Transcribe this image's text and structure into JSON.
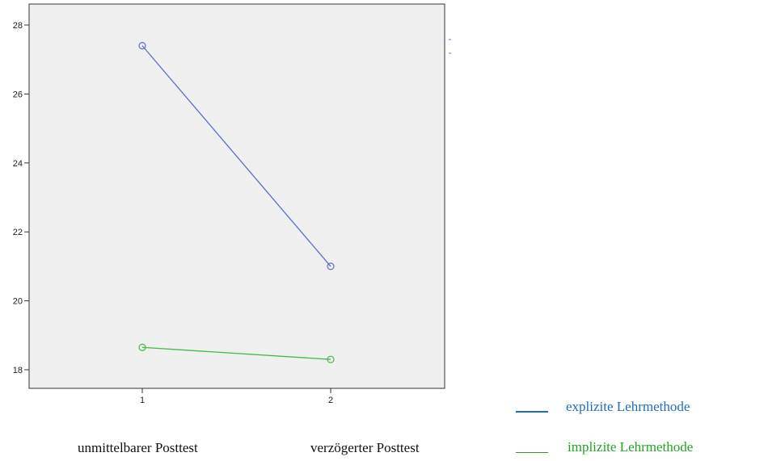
{
  "chart_data": {
    "type": "line",
    "x": [
      1,
      2
    ],
    "xticks": [
      "1",
      "2"
    ],
    "category_labels": [
      "unmittelbarer Posttest",
      "verzögerter Posttest"
    ],
    "ylim": [
      17.5,
      28.6
    ],
    "yticks": [
      18,
      20,
      22,
      24,
      26,
      28
    ],
    "series": [
      {
        "name": "explizite Lehrmethode",
        "values": [
          27.4,
          21.0
        ],
        "color": "#5b6fc8"
      },
      {
        "name": "implizite Lehrmethode",
        "values": [
          18.65,
          18.3
        ],
        "color": "#45b845"
      }
    ],
    "plot_background": "#f0f0f0",
    "grid": false,
    "legend_position": "bottom-right"
  },
  "legend": [
    {
      "label": "explizite Lehrmethode",
      "color": "#1a6fbf"
    },
    {
      "label": "implizite Lehrmethode",
      "color": "#1fa61f"
    }
  ]
}
